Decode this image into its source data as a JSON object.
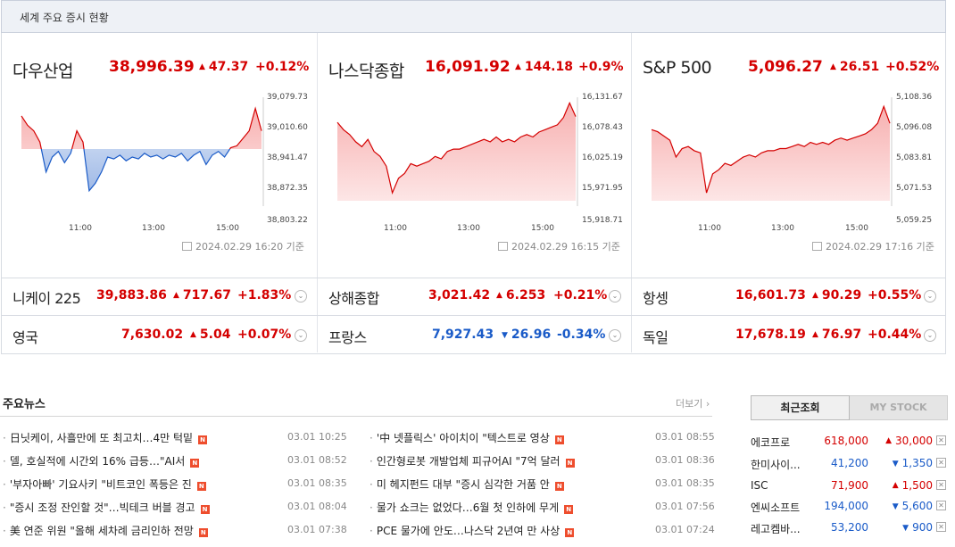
{
  "header": {
    "title": "세계 주요 증시 현황"
  },
  "main_indices": [
    {
      "name": "다우산업",
      "value": "38,996.39",
      "direction": "up",
      "change": "47.37",
      "percent": "+0.12%",
      "y_ticks": [
        "39,079.73",
        "39,010.60",
        "38,941.47",
        "38,872.35",
        "38,803.22"
      ],
      "x_ticks": [
        "11:00",
        "13:00",
        "15:00"
      ],
      "timestamp": "2024.02.29 16:20 기준",
      "chart_data": {
        "type": "area",
        "ylim": [
          38803.22,
          39079.73
        ],
        "baseline": 38941.47,
        "x": [
          "09:30",
          "09:40",
          "09:50",
          "10:00",
          "10:10",
          "10:20",
          "10:30",
          "10:40",
          "10:50",
          "11:00",
          "11:10",
          "11:20",
          "11:30",
          "11:40",
          "11:50",
          "12:00",
          "12:10",
          "12:20",
          "12:30",
          "12:40",
          "12:50",
          "13:00",
          "13:10",
          "13:20",
          "13:30",
          "13:40",
          "13:50",
          "14:00",
          "14:10",
          "14:20",
          "14:30",
          "14:40",
          "14:50",
          "15:00",
          "15:10",
          "15:20",
          "15:30",
          "15:40",
          "15:50",
          "16:00"
        ],
        "values": [
          39030,
          39005,
          38990,
          38960,
          38880,
          38920,
          38935,
          38905,
          38930,
          38990,
          38960,
          38830,
          38850,
          38880,
          38920,
          38915,
          38925,
          38910,
          38920,
          38915,
          38930,
          38920,
          38925,
          38915,
          38925,
          38920,
          38930,
          38910,
          38925,
          38935,
          38900,
          38925,
          38935,
          38920,
          38945,
          38950,
          38970,
          38990,
          39050,
          38990
        ]
      }
    },
    {
      "name": "나스닥종합",
      "value": "16,091.92",
      "direction": "up",
      "change": "144.18",
      "percent": "+0.9%",
      "y_ticks": [
        "16,131.67",
        "16,078.43",
        "16,025.19",
        "15,971.95",
        "15,918.71"
      ],
      "x_ticks": [
        "11:00",
        "13:00",
        "15:00"
      ],
      "timestamp": "2024.02.29 16:15 기준",
      "chart_data": {
        "type": "area",
        "ylim": [
          15918.71,
          16131.67
        ],
        "x": [
          "09:30",
          "09:40",
          "09:50",
          "10:00",
          "10:10",
          "10:20",
          "10:30",
          "10:40",
          "10:50",
          "11:00",
          "11:10",
          "11:20",
          "11:30",
          "11:40",
          "11:50",
          "12:00",
          "12:10",
          "12:20",
          "12:30",
          "12:40",
          "12:50",
          "13:00",
          "13:10",
          "13:20",
          "13:30",
          "13:40",
          "13:50",
          "14:00",
          "14:10",
          "14:20",
          "14:30",
          "14:40",
          "14:50",
          "15:00",
          "15:10",
          "15:20",
          "15:30",
          "15:40",
          "15:50",
          "16:00"
        ],
        "values": [
          16080,
          16065,
          16055,
          16040,
          16030,
          16045,
          16020,
          16010,
          15990,
          15935,
          15965,
          15975,
          15995,
          15990,
          15995,
          16000,
          16010,
          16005,
          16020,
          16025,
          16025,
          16030,
          16035,
          16040,
          16045,
          16040,
          16050,
          16040,
          16045,
          16040,
          16050,
          16055,
          16050,
          16060,
          16065,
          16070,
          16075,
          16090,
          16120,
          16092
        ]
      }
    },
    {
      "name": "S&P 500",
      "value": "5,096.27",
      "direction": "up",
      "change": "26.51",
      "percent": "+0.52%",
      "y_ticks": [
        "5,108.36",
        "5,096.08",
        "5,083.81",
        "5,071.53",
        "5,059.25"
      ],
      "x_ticks": [
        "11:00",
        "13:00",
        "15:00"
      ],
      "timestamp": "2024.02.29 17:16 기준",
      "chart_data": {
        "type": "area",
        "ylim": [
          5059.25,
          5108.36
        ],
        "x": [
          "09:30",
          "09:40",
          "09:50",
          "10:00",
          "10:10",
          "10:20",
          "10:30",
          "10:40",
          "10:50",
          "11:00",
          "11:10",
          "11:20",
          "11:30",
          "11:40",
          "11:50",
          "12:00",
          "12:10",
          "12:20",
          "12:30",
          "12:40",
          "12:50",
          "13:00",
          "13:10",
          "13:20",
          "13:30",
          "13:40",
          "13:50",
          "14:00",
          "14:10",
          "14:20",
          "14:30",
          "14:40",
          "14:50",
          "15:00",
          "15:10",
          "15:20",
          "15:30",
          "15:40",
          "15:50",
          "16:00"
        ],
        "values": [
          5093,
          5092,
          5090,
          5088,
          5080,
          5084,
          5085,
          5083,
          5082,
          5063,
          5072,
          5074,
          5077,
          5076,
          5078,
          5080,
          5081,
          5080,
          5082,
          5083,
          5083,
          5084,
          5084,
          5085,
          5086,
          5085,
          5087,
          5086,
          5087,
          5086,
          5088,
          5089,
          5088,
          5089,
          5090,
          5091,
          5093,
          5096,
          5104,
          5096
        ]
      }
    }
  ],
  "other_indices": [
    {
      "name": "니케이 225",
      "value": "39,883.86",
      "direction": "up",
      "change": "717.67",
      "percent": "+1.83%"
    },
    {
      "name": "상해종합",
      "value": "3,021.42",
      "direction": "up",
      "change": "6.253",
      "percent": "+0.21%"
    },
    {
      "name": "항셍",
      "value": "16,601.73",
      "direction": "up",
      "change": "90.29",
      "percent": "+0.55%"
    },
    {
      "name": "영국",
      "value": "7,630.02",
      "direction": "up",
      "change": "5.04",
      "percent": "+0.07%"
    },
    {
      "name": "프랑스",
      "value": "7,927.43",
      "direction": "down",
      "change": "26.96",
      "percent": "-0.34%"
    },
    {
      "name": "독일",
      "value": "17,678.19",
      "direction": "up",
      "change": "76.97",
      "percent": "+0.44%"
    }
  ],
  "colors": {
    "up": "#d40000",
    "down": "#1a5bc8",
    "up_fill": "#f7b0b0",
    "down_fill": "#9fb9e6"
  },
  "news": {
    "title": "주요뉴스",
    "more": "더보기",
    "left": [
      {
        "text": "日닛케이, 사흘만에 또 최고치…4만 턱밑",
        "time": "03.01 10:25"
      },
      {
        "text": "델, 호실적에 시간외 16% 급등…\"AI서",
        "time": "03.01 08:52"
      },
      {
        "text": "'부자아빠' 기요사키 \"비트코인 폭등은 진",
        "time": "03.01 08:35"
      },
      {
        "text": "\"증시 조정 잔인할 것\"…빅테크 버블 경고",
        "time": "03.01 08:04"
      },
      {
        "text": "美 연준 위원 \"올해 세차례 금리인하 전망",
        "time": "03.01 07:38"
      }
    ],
    "right": [
      {
        "text": "'中 넷플릭스' 아이치이 \"텍스트로 영상",
        "time": "03.01 08:55"
      },
      {
        "text": "인간형로봇 개발업체 피규어AI \"7억 달러",
        "time": "03.01 08:36"
      },
      {
        "text": "미 헤지펀드 대부 \"증시 심각한 거품 안",
        "time": "03.01 08:35"
      },
      {
        "text": "물가 쇼크는 없었다…6월 첫 인하에 무게",
        "time": "03.01 07:56"
      },
      {
        "text": "PCE 물가에 안도…나스닥 2년여 만 사상",
        "time": "03.01 07:24"
      }
    ],
    "badge": "N"
  },
  "stocks": {
    "tab_recent": "최근조회",
    "tab_mystock": "MY STOCK",
    "items": [
      {
        "name": "에코프로",
        "price": "618,000",
        "direction": "up",
        "change": "30,000"
      },
      {
        "name": "한미사이...",
        "price": "41,200",
        "direction": "down",
        "change": "1,350"
      },
      {
        "name": "ISC",
        "price": "71,900",
        "direction": "up",
        "change": "1,500"
      },
      {
        "name": "엔씨소프트",
        "price": "194,000",
        "direction": "down",
        "change": "5,600"
      },
      {
        "name": "레고켐바...",
        "price": "53,200",
        "direction": "down",
        "change": "900"
      }
    ]
  }
}
